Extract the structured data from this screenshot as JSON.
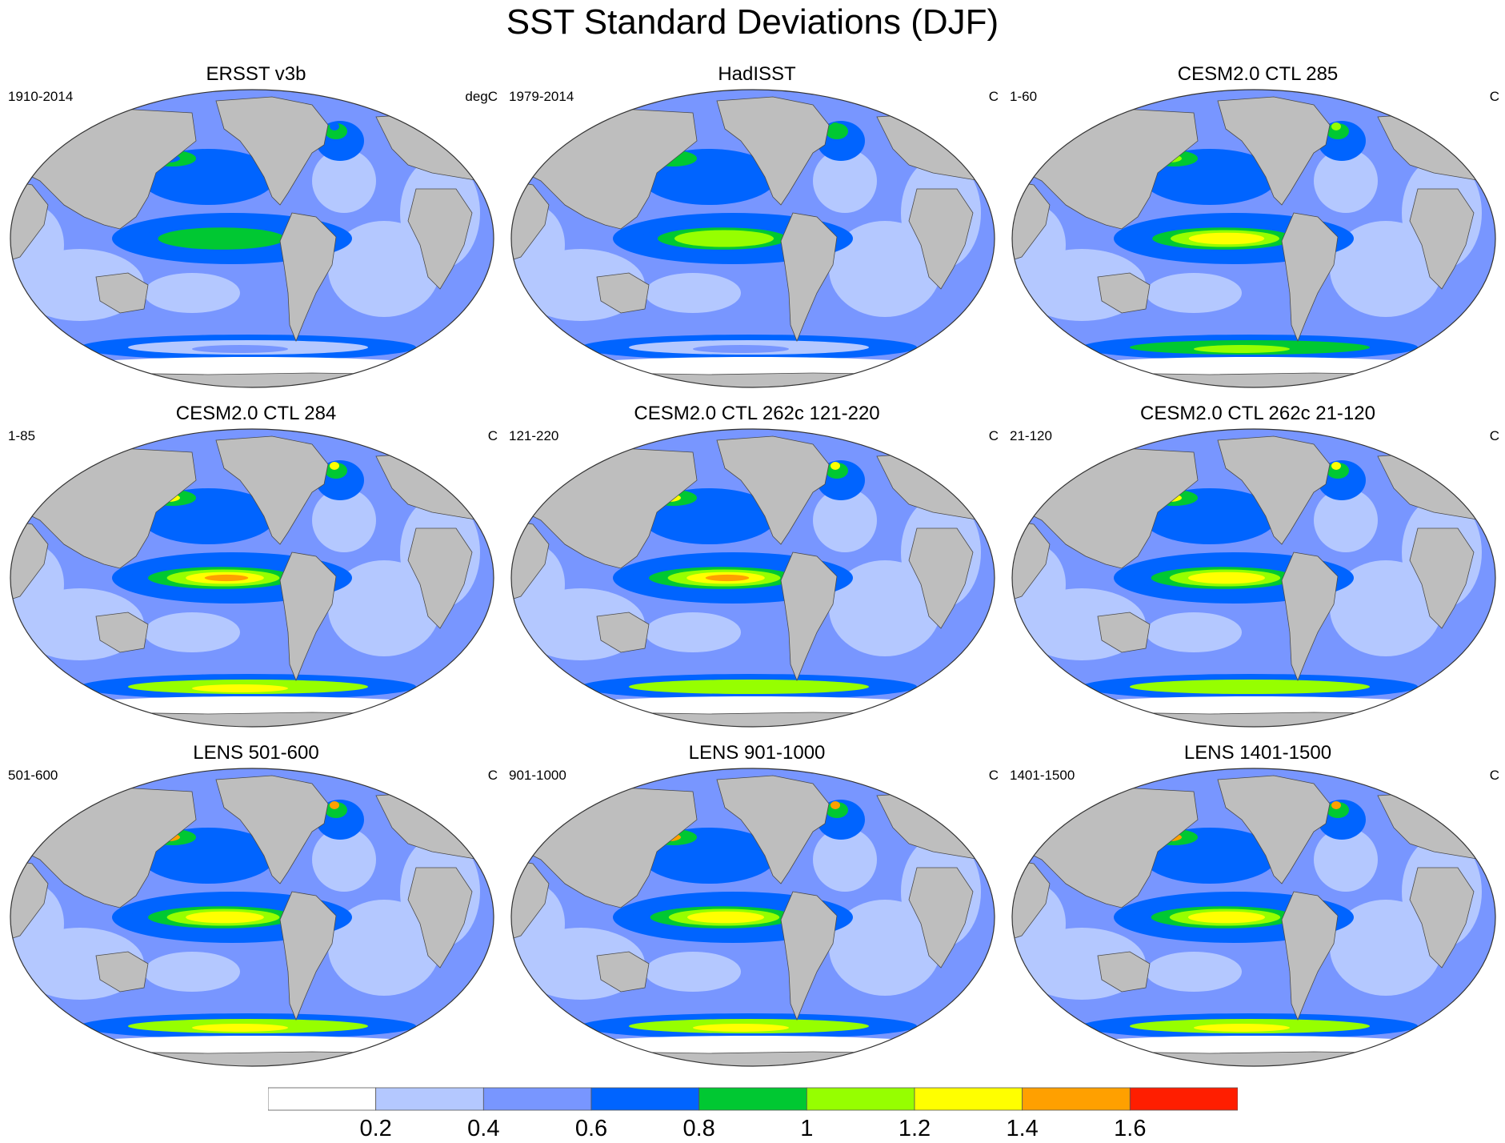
{
  "title": "SST Standard Deviations (DJF)",
  "panels": [
    {
      "title": "ERSST v3b",
      "period": "1910-2014",
      "units": "degC",
      "nino_peak": 0.9,
      "nino_strength": 0.55,
      "south_band": 0.35,
      "kuroshio": 0.75
    },
    {
      "title": "HadISST",
      "period": "1979-2014",
      "units": "C",
      "nino_peak": 1.1,
      "nino_strength": 0.6,
      "south_band": 0.3,
      "kuroshio": 0.8
    },
    {
      "title": "CESM2.0 CTL 285",
      "period": "1-60",
      "units": "C",
      "nino_peak": 1.3,
      "nino_strength": 0.85,
      "south_band": 0.9,
      "kuroshio": 1.1
    },
    {
      "title": "CESM2.0 CTL 284",
      "period": "1-85",
      "units": "C",
      "nino_peak": 1.5,
      "nino_strength": 0.95,
      "south_band": 1.1,
      "kuroshio": 1.3
    },
    {
      "title": "CESM2.0 CTL 262c 121-220",
      "period": "121-220",
      "units": "C",
      "nino_peak": 1.5,
      "nino_strength": 0.95,
      "south_band": 1.05,
      "kuroshio": 1.3
    },
    {
      "title": "CESM2.0 CTL 262c 21-120",
      "period": "21-120",
      "units": "C",
      "nino_peak": 1.45,
      "nino_strength": 0.9,
      "south_band": 1.0,
      "kuroshio": 1.3
    },
    {
      "title": "LENS 501-600",
      "period": "501-600",
      "units": "C",
      "nino_peak": 1.45,
      "nino_strength": 0.95,
      "south_band": 1.15,
      "kuroshio": 1.5
    },
    {
      "title": "LENS 901-1000",
      "period": "901-1000",
      "units": "C",
      "nino_peak": 1.3,
      "nino_strength": 0.9,
      "south_band": 1.15,
      "kuroshio": 1.5
    },
    {
      "title": "LENS 1401-1500",
      "period": "1401-1500",
      "units": "C",
      "nino_peak": 1.35,
      "nino_strength": 0.9,
      "south_band": 1.15,
      "kuroshio": 1.5
    }
  ],
  "colorbar": {
    "levels": [
      "0.2",
      "0.4",
      "0.6",
      "0.8",
      "1",
      "1.2",
      "1.4",
      "1.6"
    ],
    "colors": [
      "#ffffff",
      "#b4c8ff",
      "#7896ff",
      "#0064ff",
      "#00c832",
      "#96ff00",
      "#ffff00",
      "#ffa000",
      "#ff1e00"
    ]
  },
  "land_color": "#bebebe"
}
